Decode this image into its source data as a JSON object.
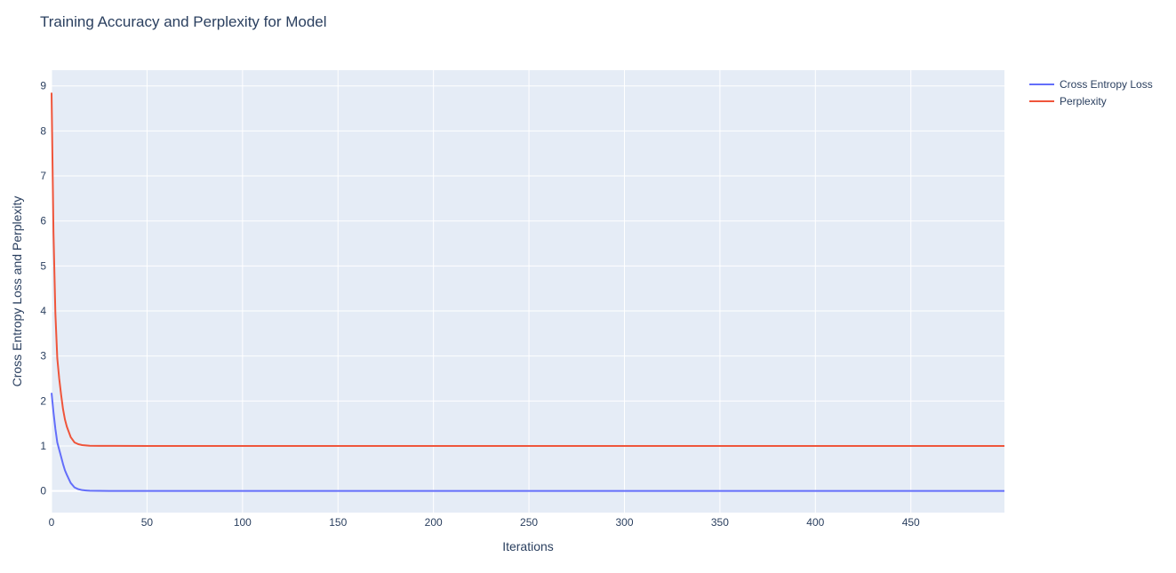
{
  "chart_data": {
    "type": "line",
    "title": "Training Accuracy and Perplexity for Model",
    "xlabel": "Iterations",
    "ylabel": "Cross Entropy Loss and Perplexity",
    "xlim": [
      0,
      499
    ],
    "ylim": [
      -0.48,
      9.35
    ],
    "x_ticks": [
      0,
      50,
      100,
      150,
      200,
      250,
      300,
      350,
      400,
      450
    ],
    "y_ticks": [
      0,
      1,
      2,
      3,
      4,
      5,
      6,
      7,
      8,
      9
    ],
    "grid": true,
    "legend_position": "top-right",
    "series": [
      {
        "name": "Cross Entropy Loss",
        "color": "#636efa",
        "x": [
          0,
          1,
          2,
          3,
          4,
          5,
          6,
          7,
          8,
          10,
          12,
          14,
          16,
          18,
          20,
          25,
          30,
          50,
          100,
          200,
          300,
          400,
          499
        ],
        "y": [
          2.18,
          1.75,
          1.38,
          1.08,
          0.92,
          0.76,
          0.6,
          0.46,
          0.36,
          0.18,
          0.08,
          0.04,
          0.02,
          0.012,
          0.006,
          0.003,
          0.002,
          0.001,
          0.0,
          0.0,
          0.0,
          0.0,
          0.0
        ]
      },
      {
        "name": "Perplexity",
        "color": "#ef553b",
        "x": [
          0,
          1,
          2,
          3,
          4,
          5,
          6,
          7,
          8,
          10,
          12,
          14,
          16,
          18,
          20,
          25,
          30,
          50,
          100,
          200,
          300,
          400,
          499
        ],
        "y": [
          8.85,
          5.75,
          3.95,
          2.95,
          2.5,
          2.14,
          1.82,
          1.59,
          1.43,
          1.2,
          1.08,
          1.04,
          1.02,
          1.012,
          1.006,
          1.003,
          1.002,
          1.001,
          1.0,
          1.0,
          1.0,
          1.0,
          1.0
        ]
      }
    ]
  }
}
